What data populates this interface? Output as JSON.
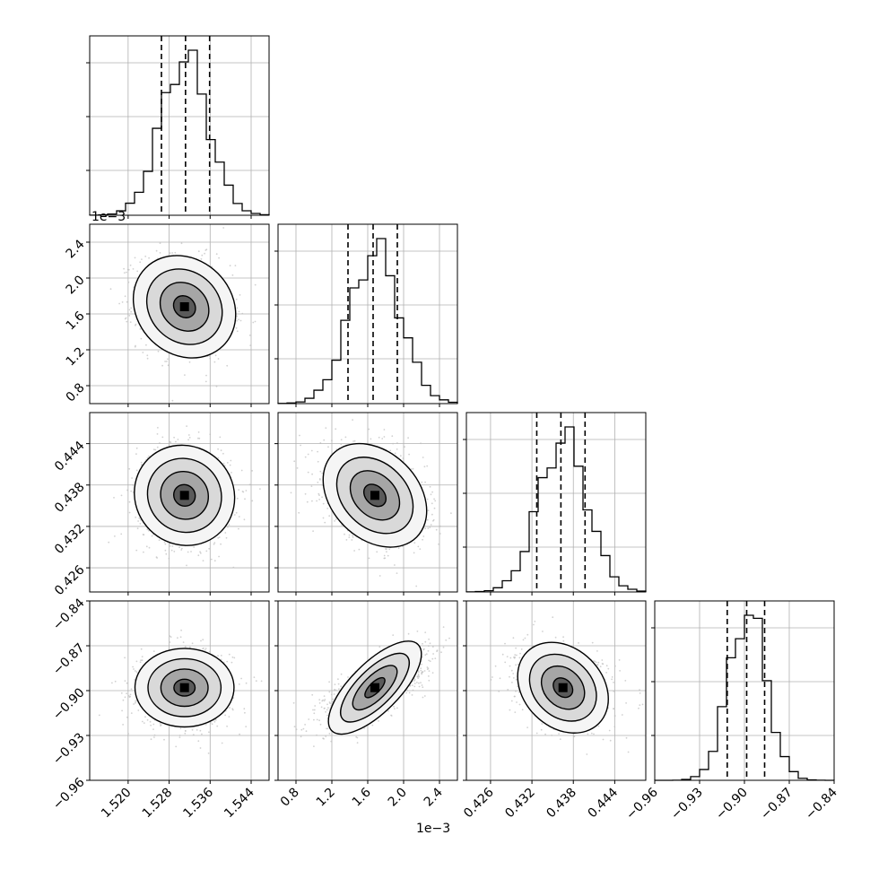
{
  "chart_data": {
    "type": "corner",
    "parameters": [
      {
        "ticks": [
          "1.520",
          "1.528",
          "1.536",
          "1.544"
        ],
        "tick_values": [
          1.52,
          1.528,
          1.536,
          1.544
        ],
        "range": [
          1.5125,
          1.5475
        ],
        "quantiles": [
          1.5265,
          1.5312,
          1.5359
        ],
        "mode": 1.531,
        "sd": 0.0046,
        "scale": 1,
        "offset": ""
      },
      {
        "ticks": [
          "0.8",
          "1.2",
          "1.6",
          "2.0",
          "2.4"
        ],
        "tick_values": [
          0.8,
          1.2,
          1.6,
          2.0,
          2.4
        ],
        "range": [
          0.6,
          2.6
        ],
        "quantiles": [
          1.38,
          1.66,
          1.93
        ],
        "mode": 1.68,
        "sd": 0.28,
        "scale": 1,
        "offset": "1e−3"
      },
      {
        "ticks": [
          "0.426",
          "0.432",
          "0.438",
          "0.444"
        ],
        "tick_values": [
          0.426,
          0.432,
          0.438,
          0.444
        ],
        "range": [
          0.4225,
          0.4485
        ],
        "quantiles": [
          0.4327,
          0.4362,
          0.4397
        ],
        "mode": 0.4365,
        "sd": 0.0035,
        "scale": 1,
        "offset": ""
      },
      {
        "ticks": [
          "−0.96",
          "−0.93",
          "−0.90",
          "−0.87",
          "−0.84"
        ],
        "tick_values": [
          -0.96,
          -0.93,
          -0.9,
          -0.87,
          -0.84
        ],
        "range": [
          -0.96,
          -0.84
        ],
        "quantiles": [
          -0.9115,
          -0.8985,
          -0.8865
        ],
        "mode": -0.898,
        "sd": 0.0125,
        "scale": 1,
        "offset": ""
      }
    ],
    "hist_y_offset": "1e−3",
    "hist_bins": 20,
    "correlations": {
      "1-0": -0.15,
      "2-0": -0.05,
      "2-1": -0.3,
      "3-0": 0.0,
      "3-1": 0.72,
      "3-2": -0.25
    },
    "contour_levels": 4,
    "grid": true
  },
  "colors": {
    "ink": "#000000",
    "grid": "#b0b0b0",
    "scatter": "#bdbdbd"
  }
}
